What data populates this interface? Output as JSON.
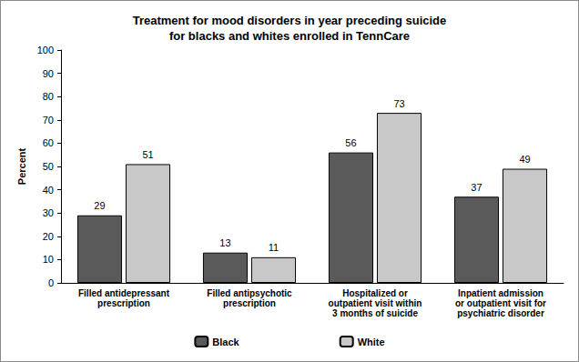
{
  "chart_data": {
    "type": "bar",
    "title": "Treatment for mood disorders in year preceding suicide\nfor blacks and whites enrolled in TennCare",
    "y_label": "Percent",
    "categories": [
      "Filled antidepressant\nprescription",
      "Filled antipsychotic\nprescription",
      "Hospitalized or\noutpatient visit within\n3 months of suicide",
      "Inpatient admission\nor outpatient visit for\npsychiatric disorder"
    ],
    "series": [
      {
        "name": "Black",
        "color": "#5a5a5a",
        "values": [
          29,
          13,
          56,
          37
        ]
      },
      {
        "name": "White",
        "color": "#c8c8c8",
        "values": [
          51,
          11,
          73,
          49
        ]
      }
    ],
    "ylim": [
      0,
      100
    ],
    "yticks": [
      0,
      10,
      20,
      30,
      40,
      50,
      60,
      70,
      80,
      90,
      100
    ],
    "grid": false,
    "legend": "bottom",
    "data_labels": true
  }
}
